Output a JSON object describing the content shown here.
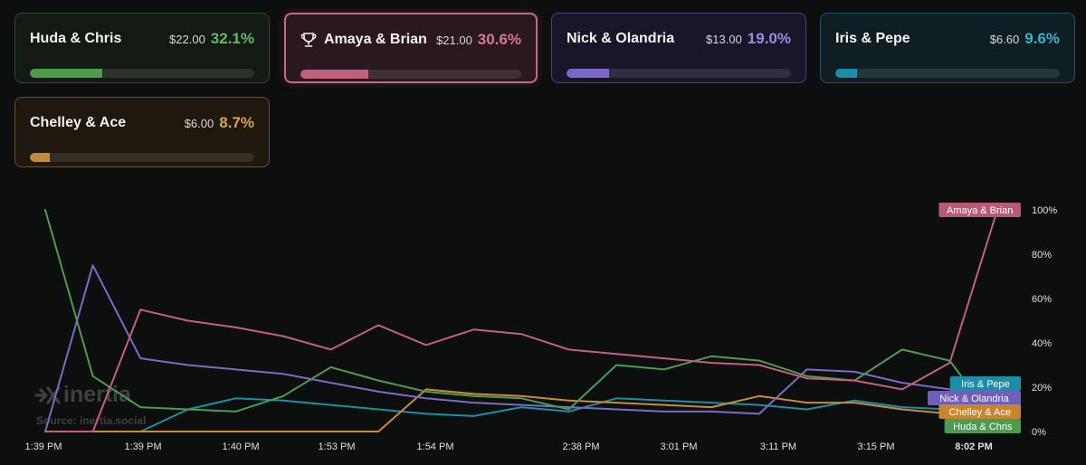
{
  "cards": [
    {
      "key": "huda",
      "name": "Huda & Chris",
      "amount": "$22.00",
      "pct": "32.1%",
      "pct_value": 32.1,
      "winner": false,
      "color": "#4f9a4f",
      "fill": "#4c9a4a",
      "pct_color": "#6ab56a",
      "bg": "#131a13",
      "border": "#2d4a2d"
    },
    {
      "key": "amaya",
      "name": "Amaya & Brian",
      "amount": "$21.00",
      "pct": "30.6%",
      "pct_value": 30.6,
      "winner": true,
      "color": "#c2607d",
      "fill": "#c0607a",
      "pct_color": "#d27a94",
      "bg": "#2a1820",
      "border": "#c06c86"
    },
    {
      "key": "nick",
      "name": "Nick & Olandria",
      "amount": "$13.00",
      "pct": "19.0%",
      "pct_value": 19.0,
      "winner": false,
      "color": "#7c6bc4",
      "fill": "#7a67c6",
      "pct_color": "#9a8ce0",
      "bg": "#18172a",
      "border": "#4a4370"
    },
    {
      "key": "iris",
      "name": "Iris & Pepe",
      "amount": "$6.60",
      "pct": "9.6%",
      "pct_value": 9.6,
      "winner": false,
      "color": "#1c8fa6",
      "fill": "#1a8ea6",
      "pct_color": "#36b3cc",
      "bg": "#0f1e22",
      "border": "#1f5460"
    },
    {
      "key": "chelley",
      "name": "Chelley & Ace",
      "amount": "$6.00",
      "pct": "8.7%",
      "pct_value": 8.7,
      "winner": false,
      "color": "#c78d3a",
      "fill": "#c28a3c",
      "pct_color": "#d6a25a",
      "bg": "#1f180f",
      "border": "#6a4e28"
    }
  ],
  "chart_data": {
    "type": "line",
    "x_tick_labels": [
      "1:39 PM",
      "1:39 PM",
      "1:40 PM",
      "1:53 PM",
      "1:54 PM",
      "2:38 PM",
      "3:01 PM",
      "3:11 PM",
      "3:15 PM",
      "8:02 PM"
    ],
    "y_tick_labels": [
      "100%",
      "80%",
      "60%",
      "40%",
      "20%",
      "0%"
    ],
    "ylim": [
      0,
      100
    ],
    "xlim": [
      0,
      21
    ],
    "series": [
      {
        "name": "Huda & Chris",
        "color": "#4e9a50",
        "end_label_color": "#4e9a50",
        "points": [
          [
            0,
            100
          ],
          [
            1,
            25
          ],
          [
            2,
            11
          ],
          [
            3,
            10
          ],
          [
            4,
            9
          ],
          [
            5,
            16
          ],
          [
            6,
            29
          ],
          [
            7,
            23
          ],
          [
            8,
            18
          ],
          [
            9,
            16
          ],
          [
            10,
            15
          ],
          [
            11,
            10
          ],
          [
            12,
            30
          ],
          [
            13,
            28
          ],
          [
            14,
            34
          ],
          [
            15,
            32
          ],
          [
            16,
            25
          ],
          [
            17,
            23
          ],
          [
            18,
            37
          ],
          [
            19,
            32
          ],
          [
            20,
            3
          ]
        ]
      },
      {
        "name": "Amaya & Brian",
        "color": "#c2607d",
        "end_label_color": "#b85a74",
        "points": [
          [
            0,
            0
          ],
          [
            1,
            0
          ],
          [
            2,
            55
          ],
          [
            3,
            50
          ],
          [
            4,
            47
          ],
          [
            5,
            43
          ],
          [
            6,
            37
          ],
          [
            7,
            48
          ],
          [
            8,
            39
          ],
          [
            9,
            46
          ],
          [
            10,
            44
          ],
          [
            11,
            37
          ],
          [
            12,
            35
          ],
          [
            13,
            33
          ],
          [
            14,
            31
          ],
          [
            15,
            30
          ],
          [
            16,
            24
          ],
          [
            17,
            23
          ],
          [
            18,
            19
          ],
          [
            19,
            31
          ],
          [
            20,
            100
          ]
        ]
      },
      {
        "name": "Nick & Olandria",
        "color": "#7c6bc4",
        "end_label_color": "#6f5fb8",
        "points": [
          [
            0,
            0
          ],
          [
            1,
            75
          ],
          [
            2,
            33
          ],
          [
            3,
            30
          ],
          [
            4,
            28
          ],
          [
            5,
            26
          ],
          [
            6,
            22
          ],
          [
            7,
            18
          ],
          [
            8,
            15
          ],
          [
            9,
            13
          ],
          [
            10,
            12
          ],
          [
            11,
            11
          ],
          [
            12,
            10
          ],
          [
            13,
            9
          ],
          [
            14,
            9
          ],
          [
            15,
            8
          ],
          [
            16,
            28
          ],
          [
            17,
            27
          ],
          [
            18,
            22
          ],
          [
            19,
            19
          ],
          [
            20,
            13
          ]
        ]
      },
      {
        "name": "Iris & Pepe",
        "color": "#1c8fa6",
        "end_label_color": "#1a8ea6",
        "points": [
          [
            0,
            0
          ],
          [
            1,
            0
          ],
          [
            2,
            0
          ],
          [
            3,
            10
          ],
          [
            4,
            15
          ],
          [
            5,
            14
          ],
          [
            6,
            12
          ],
          [
            7,
            10
          ],
          [
            8,
            8
          ],
          [
            9,
            7
          ],
          [
            10,
            11
          ],
          [
            11,
            9
          ],
          [
            12,
            15
          ],
          [
            13,
            14
          ],
          [
            14,
            13
          ],
          [
            15,
            12
          ],
          [
            16,
            10
          ],
          [
            17,
            14
          ],
          [
            18,
            11
          ],
          [
            19,
            10
          ],
          [
            20,
            3
          ]
        ]
      },
      {
        "name": "Chelley & Ace",
        "color": "#c78d3a",
        "end_label_color": "#c7852e",
        "points": [
          [
            0,
            0
          ],
          [
            1,
            0
          ],
          [
            2,
            0
          ],
          [
            3,
            0
          ],
          [
            4,
            0
          ],
          [
            5,
            0
          ],
          [
            6,
            0
          ],
          [
            7,
            0
          ],
          [
            8,
            19
          ],
          [
            9,
            17
          ],
          [
            10,
            16
          ],
          [
            11,
            14
          ],
          [
            12,
            13
          ],
          [
            13,
            12
          ],
          [
            14,
            11
          ],
          [
            15,
            16
          ],
          [
            16,
            13
          ],
          [
            17,
            13
          ],
          [
            18,
            10
          ],
          [
            19,
            8
          ],
          [
            20,
            6
          ]
        ]
      }
    ]
  },
  "watermark": {
    "brand": "inertia",
    "source": "Source: inertia.social"
  }
}
